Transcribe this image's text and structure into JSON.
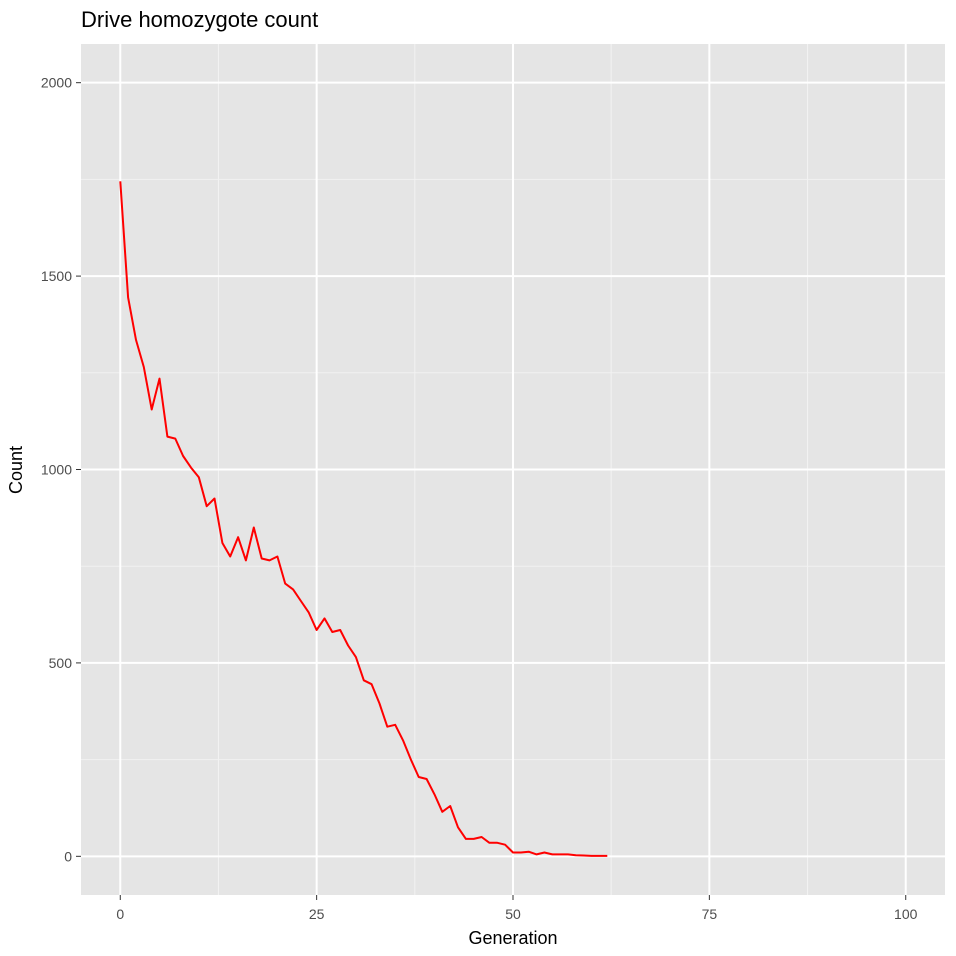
{
  "chart_data": {
    "type": "line",
    "title": "Drive homozygote count",
    "xlabel": "Generation",
    "ylabel": "Count",
    "xlim": [
      -5,
      105
    ],
    "ylim": [
      -100,
      2100
    ],
    "x_ticks": [
      0,
      25,
      50,
      75,
      100
    ],
    "y_ticks": [
      0,
      500,
      1000,
      1500,
      2000
    ],
    "x_tick_labels": [
      "0",
      "25",
      "50",
      "75",
      "100"
    ],
    "y_tick_labels": [
      "0",
      "500",
      "1000",
      "1500",
      "2000"
    ],
    "grid": true,
    "legend": "none",
    "colors": {
      "panel_background": "#e5e5e5",
      "grid_major": "#ffffff",
      "grid_minor": "#f2f2f2",
      "line": "#ff0000"
    },
    "series": [
      {
        "x": [
          0,
          1,
          2,
          3,
          4,
          5,
          6,
          7,
          8,
          9,
          10,
          11,
          12,
          13,
          14,
          15,
          16,
          17,
          18,
          19,
          20,
          21,
          22,
          23,
          24,
          25,
          26,
          27,
          28,
          29,
          30,
          31,
          32,
          33,
          34,
          35,
          36,
          37,
          38,
          39,
          40,
          41,
          42,
          43,
          44,
          45,
          46,
          47,
          48,
          49,
          50,
          51,
          52,
          53,
          54,
          55,
          56,
          57,
          58,
          59,
          60,
          61,
          62
        ],
        "y": [
          1745,
          1445,
          1335,
          1265,
          1155,
          1235,
          1085,
          1080,
          1035,
          1005,
          980,
          905,
          925,
          810,
          775,
          825,
          765,
          850,
          770,
          765,
          775,
          705,
          690,
          660,
          630,
          585,
          615,
          580,
          585,
          545,
          515,
          455,
          445,
          395,
          335,
          340,
          300,
          250,
          205,
          200,
          160,
          115,
          130,
          75,
          45,
          45,
          50,
          35,
          35,
          30,
          10,
          10,
          12,
          5,
          10,
          5,
          5,
          5,
          3,
          2,
          1,
          1,
          1
        ]
      }
    ]
  }
}
